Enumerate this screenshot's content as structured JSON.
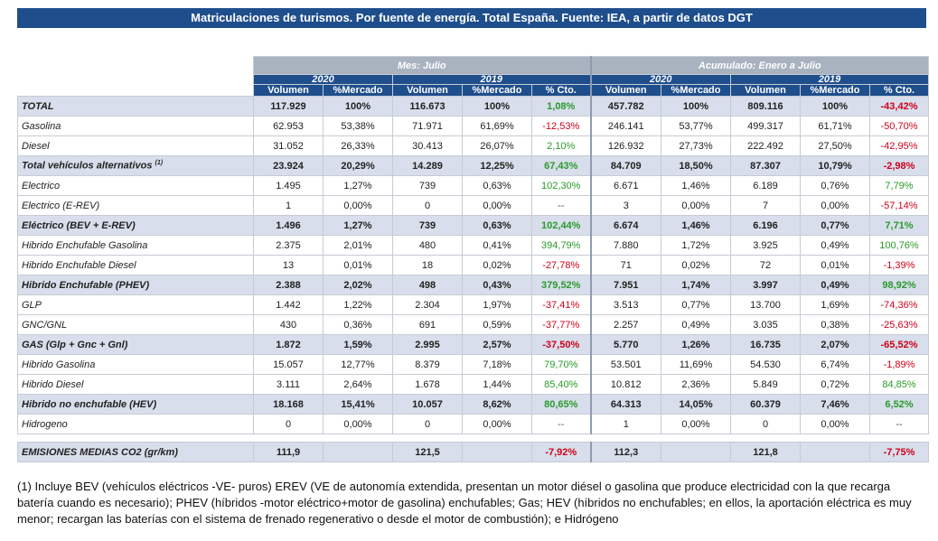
{
  "title": "Matriculaciones de turismos. Por fuente de energía. Total España. Fuente: IEA, a partir de datos DGT",
  "header": {
    "group_mes": "Mes: Julio",
    "group_acum": "Acumulado: Enero a Julio",
    "year_2020": "2020",
    "year_2019": "2019",
    "col_volumen": "Volumen",
    "col_mercado": "%Mercado",
    "col_cto": "% Cto."
  },
  "rows": [
    {
      "label": "TOTAL",
      "type": "sum",
      "cells": [
        "117.929",
        "100%",
        "116.673",
        "100%",
        "1,08%",
        "457.782",
        "100%",
        "809.116",
        "100%",
        "-43,42%"
      ],
      "signs": [
        "pos",
        "neg"
      ]
    },
    {
      "label": "Gasolina",
      "type": "sub",
      "cells": [
        "62.953",
        "53,38%",
        "71.971",
        "61,69%",
        "-12,53%",
        "246.141",
        "53,77%",
        "499.317",
        "61,71%",
        "-50,70%"
      ],
      "signs": [
        "neg",
        "neg"
      ]
    },
    {
      "label": "Diesel",
      "type": "sub",
      "cells": [
        "31.052",
        "26,33%",
        "30.413",
        "26,07%",
        "2,10%",
        "126.932",
        "27,73%",
        "222.492",
        "27,50%",
        "-42,95%"
      ],
      "signs": [
        "pos",
        "neg"
      ]
    },
    {
      "label": "Total vehículos alternativos",
      "sup": "(1)",
      "type": "sum",
      "cells": [
        "23.924",
        "20,29%",
        "14.289",
        "12,25%",
        "67,43%",
        "84.709",
        "18,50%",
        "87.307",
        "10,79%",
        "-2,98%"
      ],
      "signs": [
        "pos",
        "neg"
      ]
    },
    {
      "label": "Electrico",
      "type": "sub",
      "cells": [
        "1.495",
        "1,27%",
        "739",
        "0,63%",
        "102,30%",
        "6.671",
        "1,46%",
        "6.189",
        "0,76%",
        "7,79%"
      ],
      "signs": [
        "pos",
        "pos"
      ]
    },
    {
      "label": "Electrico (E-REV)",
      "type": "sub",
      "cells": [
        "1",
        "0,00%",
        "0",
        "0,00%",
        "--",
        "3",
        "0,00%",
        "7",
        "0,00%",
        "-57,14%"
      ],
      "signs": [
        "neu",
        "neg"
      ]
    },
    {
      "label": "Eléctrico (BEV + E-REV)",
      "type": "sum",
      "cells": [
        "1.496",
        "1,27%",
        "739",
        "0,63%",
        "102,44%",
        "6.674",
        "1,46%",
        "6.196",
        "0,77%",
        "7,71%"
      ],
      "signs": [
        "pos",
        "pos"
      ]
    },
    {
      "label": "Hibrido Enchufable Gasolina",
      "type": "sub",
      "cells": [
        "2.375",
        "2,01%",
        "480",
        "0,41%",
        "394,79%",
        "7.880",
        "1,72%",
        "3.925",
        "0,49%",
        "100,76%"
      ],
      "signs": [
        "pos",
        "pos"
      ]
    },
    {
      "label": "Hibrido Enchufable Diesel",
      "type": "sub",
      "cells": [
        "13",
        "0,01%",
        "18",
        "0,02%",
        "-27,78%",
        "71",
        "0,02%",
        "72",
        "0,01%",
        "-1,39%"
      ],
      "signs": [
        "neg",
        "neg"
      ]
    },
    {
      "label": "Hibrido Enchufable (PHEV)",
      "type": "sum",
      "cells": [
        "2.388",
        "2,02%",
        "498",
        "0,43%",
        "379,52%",
        "7.951",
        "1,74%",
        "3.997",
        "0,49%",
        "98,92%"
      ],
      "signs": [
        "pos",
        "pos"
      ]
    },
    {
      "label": "GLP",
      "type": "sub",
      "cells": [
        "1.442",
        "1,22%",
        "2.304",
        "1,97%",
        "-37,41%",
        "3.513",
        "0,77%",
        "13.700",
        "1,69%",
        "-74,36%"
      ],
      "signs": [
        "neg",
        "neg"
      ]
    },
    {
      "label": "GNC/GNL",
      "type": "sub",
      "cells": [
        "430",
        "0,36%",
        "691",
        "0,59%",
        "-37,77%",
        "2.257",
        "0,49%",
        "3.035",
        "0,38%",
        "-25,63%"
      ],
      "signs": [
        "neg",
        "neg"
      ]
    },
    {
      "label": "GAS (Glp + Gnc + Gnl)",
      "type": "sum",
      "cells": [
        "1.872",
        "1,59%",
        "2.995",
        "2,57%",
        "-37,50%",
        "5.770",
        "1,26%",
        "16.735",
        "2,07%",
        "-65,52%"
      ],
      "signs": [
        "neg",
        "neg"
      ]
    },
    {
      "label": "Hibrido Gasolina",
      "type": "sub",
      "cells": [
        "15.057",
        "12,77%",
        "8.379",
        "7,18%",
        "79,70%",
        "53.501",
        "11,69%",
        "54.530",
        "6,74%",
        "-1,89%"
      ],
      "signs": [
        "pos",
        "neg"
      ]
    },
    {
      "label": "Hibrido Diesel",
      "type": "sub",
      "cells": [
        "3.111",
        "2,64%",
        "1.678",
        "1,44%",
        "85,40%",
        "10.812",
        "2,36%",
        "5.849",
        "0,72%",
        "84,85%"
      ],
      "signs": [
        "pos",
        "pos"
      ]
    },
    {
      "label": "Hibrido no enchufable (HEV)",
      "type": "sum",
      "cells": [
        "18.168",
        "15,41%",
        "10.057",
        "8,62%",
        "80,65%",
        "64.313",
        "14,05%",
        "60.379",
        "7,46%",
        "6,52%"
      ],
      "signs": [
        "pos",
        "pos"
      ]
    },
    {
      "label": "Hidrogeno",
      "type": "sub",
      "cells": [
        "0",
        "0,00%",
        "0",
        "0,00%",
        "--",
        "1",
        "0,00%",
        "0",
        "0,00%",
        "--"
      ],
      "signs": [
        "neu",
        "neu"
      ]
    }
  ],
  "emisiones": {
    "label": "EMISIONES MEDIAS CO2 (gr/km)",
    "cells": [
      "111,9",
      "",
      "121,5",
      "",
      "-7,92%",
      "112,3",
      "",
      "121,8",
      "",
      "-7,75%"
    ],
    "signs": [
      "neg",
      "neg"
    ]
  },
  "footnote": "(1) Incluye BEV (vehículos eléctricos -VE- puros) EREV (VE de autonomía extendida, presentan un motor diésel o gasolina que produce electricidad con la que recarga batería cuando es necesario); PHEV (híbridos -motor eléctrico+motor de gasolina) enchufables; Gas; HEV (híbridos no enchufables; en ellos, la aportación eléctrica es muy menor; recargan las baterías con el sistema de frenado regenerativo o desde el motor de combustión); e Hidrógeno",
  "colors": {
    "header_blue": "#1f4e8c",
    "header_grey": "#a9b2bf",
    "sum_row": "#d8deeb",
    "positive": "#2a9a2a",
    "negative": "#d0021b"
  }
}
